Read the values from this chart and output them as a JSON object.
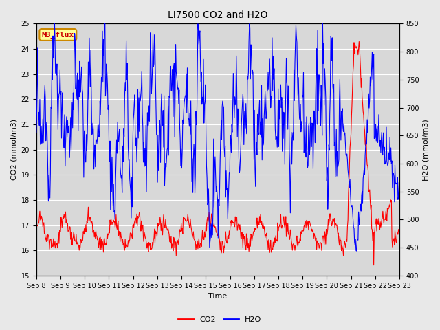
{
  "title": "LI7500 CO2 and H2O",
  "xlabel": "Time",
  "ylabel_left": "CO2 (mmol/m3)",
  "ylabel_right": "H2O (mmol/m3)",
  "co2_ylim": [
    15.0,
    25.0
  ],
  "h2o_ylim": [
    400,
    850
  ],
  "co2_yticks": [
    15.0,
    16.0,
    17.0,
    18.0,
    19.0,
    20.0,
    21.0,
    22.0,
    23.0,
    24.0,
    25.0
  ],
  "h2o_yticks": [
    400,
    450,
    500,
    550,
    600,
    650,
    700,
    750,
    800,
    850
  ],
  "xtick_labels": [
    "Sep 8",
    "Sep 9",
    "Sep 10",
    "Sep 11",
    "Sep 12",
    "Sep 13",
    "Sep 14",
    "Sep 15",
    "Sep 16",
    "Sep 17",
    "Sep 18",
    "Sep 19",
    "Sep 20",
    "Sep 21",
    "Sep 22",
    "Sep 23"
  ],
  "annotation_text": "MB_flux",
  "annotation_bg": "#ffff99",
  "annotation_border": "#cc8800",
  "annotation_text_color": "#cc0000",
  "co2_color": "#ff0000",
  "h2o_color": "#0000ff",
  "fig_bg_color": "#e8e8e8",
  "plot_bg_color": "#d8d8d8",
  "grid_color": "#ffffff",
  "title_fontsize": 10,
  "axis_fontsize": 8,
  "tick_fontsize": 7,
  "legend_fontsize": 8,
  "linewidth": 0.8
}
